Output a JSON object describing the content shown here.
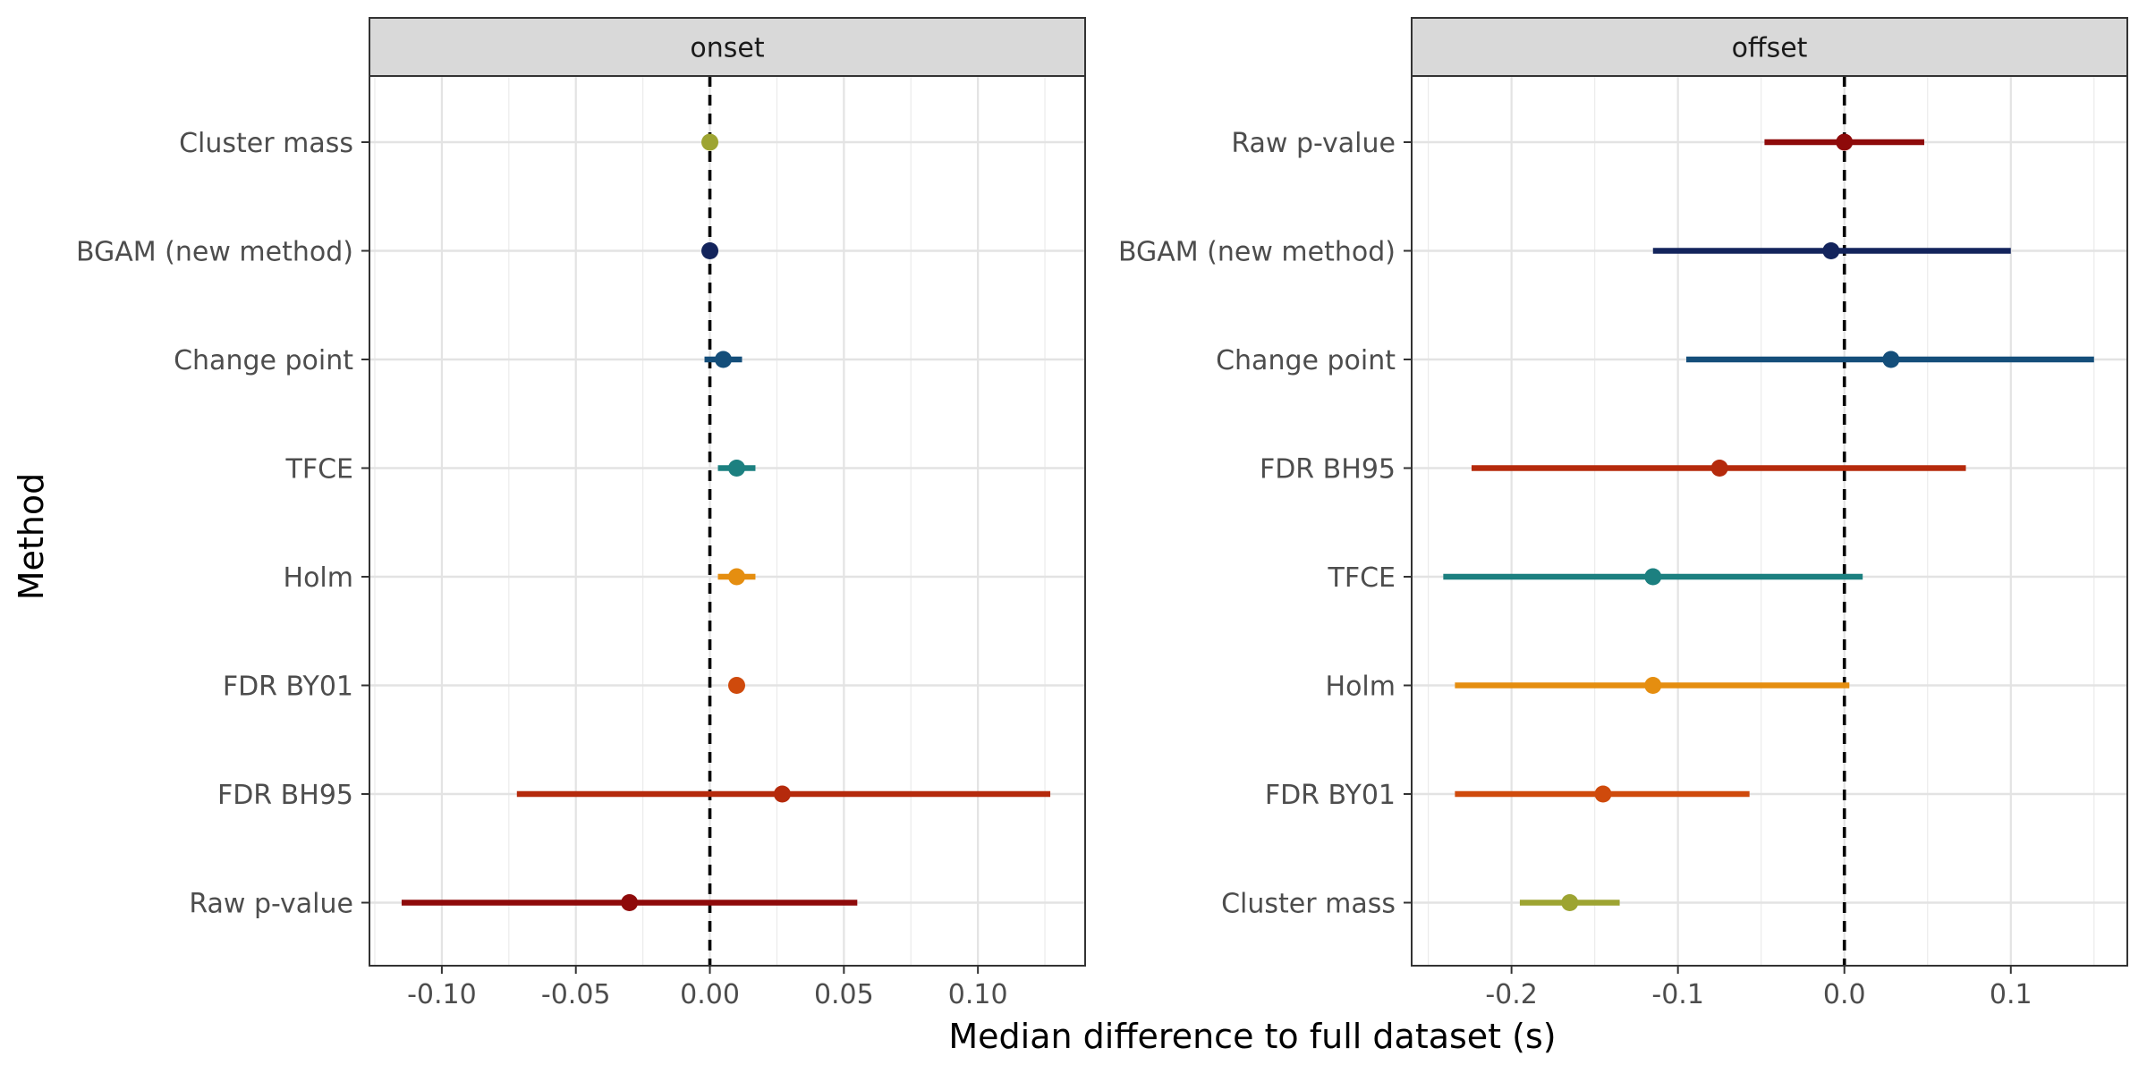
{
  "chart_data": {
    "type": "scatter",
    "subtype": "pointrange",
    "xlabel": "Median difference to full dataset (s)",
    "ylabel": "Method",
    "grid": true,
    "legend": "none",
    "reference_line": {
      "x": 0,
      "style": "dashed",
      "color": "#000000"
    },
    "panels": [
      {
        "strip_label": "onset",
        "xlim": [
          -0.127,
          0.14
        ],
        "x_ticks": [
          -0.1,
          -0.05,
          0.0,
          0.05,
          0.1
        ],
        "x_tick_labels": [
          "-0.10",
          "-0.05",
          "0.00",
          "0.05",
          "0.10"
        ],
        "categories": [
          "Cluster mass",
          "BGAM (new method)",
          "Change point",
          "TFCE",
          "Holm",
          "FDR BY01",
          "FDR BH95",
          "Raw p-value"
        ],
        "points": [
          {
            "method": "Cluster mass",
            "median": 0.0,
            "low": 0.0,
            "high": 0.0,
            "color": "#9da432"
          },
          {
            "method": "BGAM (new method)",
            "median": 0.0,
            "low": 0.0,
            "high": 0.0,
            "color": "#13245c"
          },
          {
            "method": "Change point",
            "median": 0.005,
            "low": -0.002,
            "high": 0.012,
            "color": "#144e7a"
          },
          {
            "method": "TFCE",
            "median": 0.01,
            "low": 0.003,
            "high": 0.017,
            "color": "#1c8080"
          },
          {
            "method": "Holm",
            "median": 0.01,
            "low": 0.003,
            "high": 0.017,
            "color": "#e58e10"
          },
          {
            "method": "FDR BY01",
            "median": 0.01,
            "low": 0.01,
            "high": 0.01,
            "color": "#cf4a0c"
          },
          {
            "method": "FDR BH95",
            "median": 0.027,
            "low": -0.072,
            "high": 0.127,
            "color": "#b52a0c"
          },
          {
            "method": "Raw p-value",
            "median": -0.03,
            "low": -0.115,
            "high": 0.055,
            "color": "#8e0a0a"
          }
        ]
      },
      {
        "strip_label": "offset",
        "xlim": [
          -0.26,
          0.17
        ],
        "x_ticks": [
          -0.2,
          -0.1,
          0.0,
          0.1
        ],
        "x_tick_labels": [
          "-0.2",
          "-0.1",
          "0.0",
          "0.1"
        ],
        "categories": [
          "Raw p-value",
          "BGAM (new method)",
          "Change point",
          "FDR BH95",
          "TFCE",
          "Holm",
          "FDR BY01",
          "Cluster mass"
        ],
        "points": [
          {
            "method": "Raw p-value",
            "median": 0.0,
            "low": -0.048,
            "high": 0.048,
            "color": "#8e0a0a"
          },
          {
            "method": "BGAM (new method)",
            "median": -0.008,
            "low": -0.115,
            "high": 0.1,
            "color": "#13245c"
          },
          {
            "method": "Change point",
            "median": 0.028,
            "low": -0.095,
            "high": 0.15,
            "color": "#144e7a"
          },
          {
            "method": "FDR BH95",
            "median": -0.075,
            "low": -0.224,
            "high": 0.073,
            "color": "#b52a0c"
          },
          {
            "method": "TFCE",
            "median": -0.115,
            "low": -0.241,
            "high": 0.011,
            "color": "#1c8080"
          },
          {
            "method": "Holm",
            "median": -0.115,
            "low": -0.234,
            "high": 0.003,
            "color": "#e58e10"
          },
          {
            "method": "FDR BY01",
            "median": -0.145,
            "low": -0.234,
            "high": -0.057,
            "color": "#cf4a0c"
          },
          {
            "method": "Cluster mass",
            "median": -0.165,
            "low": -0.195,
            "high": -0.135,
            "color": "#9da432"
          }
        ]
      }
    ]
  }
}
